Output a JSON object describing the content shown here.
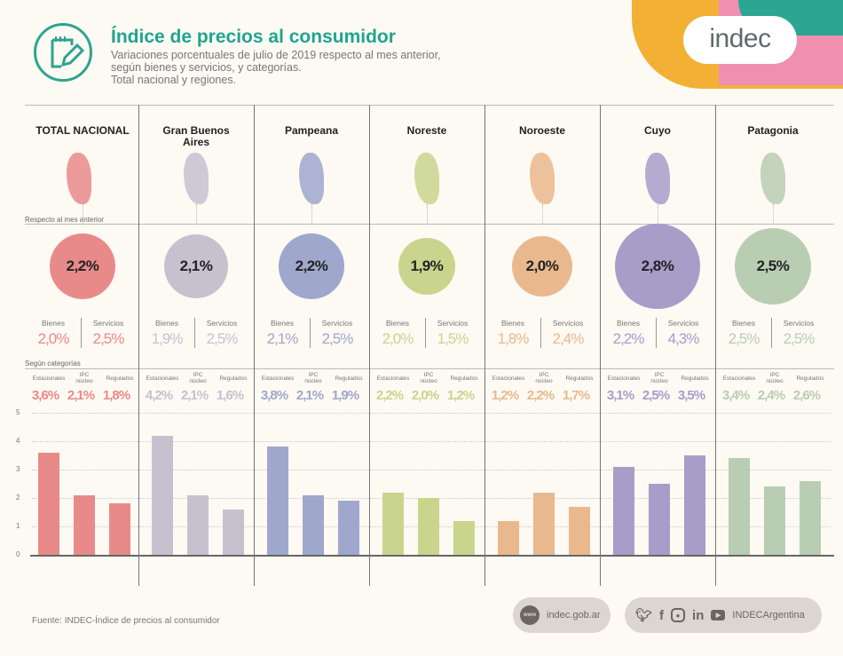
{
  "header": {
    "title": "Índice de precios al consumidor",
    "subtitle_lines": [
      "Variaciones porcentuales de julio de 2019 respecto al mes anterior,",
      "según bienes y servicios, y categorías.",
      "Total nacional y regiones."
    ],
    "brand": "indec",
    "icon": "notepad-pencil-icon"
  },
  "labels": {
    "respecto": "Respecto al mes anterior",
    "segun": "Según categorías",
    "bienes": "Bienes",
    "servicios": "Servicios",
    "estacionales": "Estacionales",
    "ipc_nucleo": "IPC núcleo",
    "regulados": "Regulados"
  },
  "footer": {
    "source": "Fuente: INDEC-Índice de precios al consumidor",
    "web_icon": "www",
    "web": "indec.gob.ar",
    "social": "INDECArgentina",
    "social_icons": [
      "twitter-icon",
      "facebook-icon",
      "instagram-icon",
      "linkedin-icon",
      "youtube-icon"
    ]
  },
  "regions": [
    {
      "name": "TOTAL NACIONAL",
      "color": "#e98a8a",
      "total": "2,2%",
      "bienes": "2,0%",
      "servicios": "2,5%",
      "cats": [
        "3,6%",
        "2,1%",
        "1,8%"
      ]
    },
    {
      "name": "Gran Buenos Aires",
      "color": "#c6c1cf",
      "total": "2,1%",
      "bienes": "1,9%",
      "servicios": "2,5%",
      "cats": [
        "4,2%",
        "2,1%",
        "1,6%"
      ]
    },
    {
      "name": "Pampeana",
      "color": "#9fa7cd",
      "total": "2,2%",
      "bienes": "2,1%",
      "servicios": "2,5%",
      "cats": [
        "3,8%",
        "2,1%",
        "1,9%"
      ]
    },
    {
      "name": "Noreste",
      "color": "#c9d58d",
      "total": "1,9%",
      "bienes": "2,0%",
      "servicios": "1,5%",
      "cats": [
        "2,2%",
        "2,0%",
        "1,2%"
      ]
    },
    {
      "name": "Noroeste",
      "color": "#e9b98d",
      "total": "2,0%",
      "bienes": "1,8%",
      "servicios": "2,4%",
      "cats": [
        "1,2%",
        "2,2%",
        "1,7%"
      ]
    },
    {
      "name": "Cuyo",
      "color": "#a89dc9",
      "total": "2,8%",
      "bienes": "2,2%",
      "servicios": "4,3%",
      "cats": [
        "3,1%",
        "2,5%",
        "3,5%"
      ]
    },
    {
      "name": "Patagonia",
      "color": "#b9cdb2",
      "total": "2,5%",
      "bienes": "2,5%",
      "servicios": "2,5%",
      "cats": [
        "3,4%",
        "2,4%",
        "2,6%"
      ]
    }
  ],
  "chart_data": {
    "type": "bar",
    "categories": [
      "Estacionales",
      "IPC núcleo",
      "Regulados"
    ],
    "ylim": [
      0,
      5
    ],
    "yticks": [
      "0",
      "1",
      "2",
      "3",
      "4",
      "5"
    ],
    "grid": true,
    "series": [
      {
        "name": "TOTAL NACIONAL",
        "values": [
          3.6,
          2.1,
          1.8
        ]
      },
      {
        "name": "Gran Buenos Aires",
        "values": [
          4.2,
          2.1,
          1.6
        ]
      },
      {
        "name": "Pampeana",
        "values": [
          3.8,
          2.1,
          1.9
        ]
      },
      {
        "name": "Noreste",
        "values": [
          2.2,
          2.0,
          1.2
        ]
      },
      {
        "name": "Noroeste",
        "values": [
          1.2,
          2.2,
          1.7
        ]
      },
      {
        "name": "Cuyo",
        "values": [
          3.1,
          2.5,
          3.5
        ]
      },
      {
        "name": "Patagonia",
        "values": [
          3.4,
          2.4,
          2.6
        ]
      }
    ]
  }
}
